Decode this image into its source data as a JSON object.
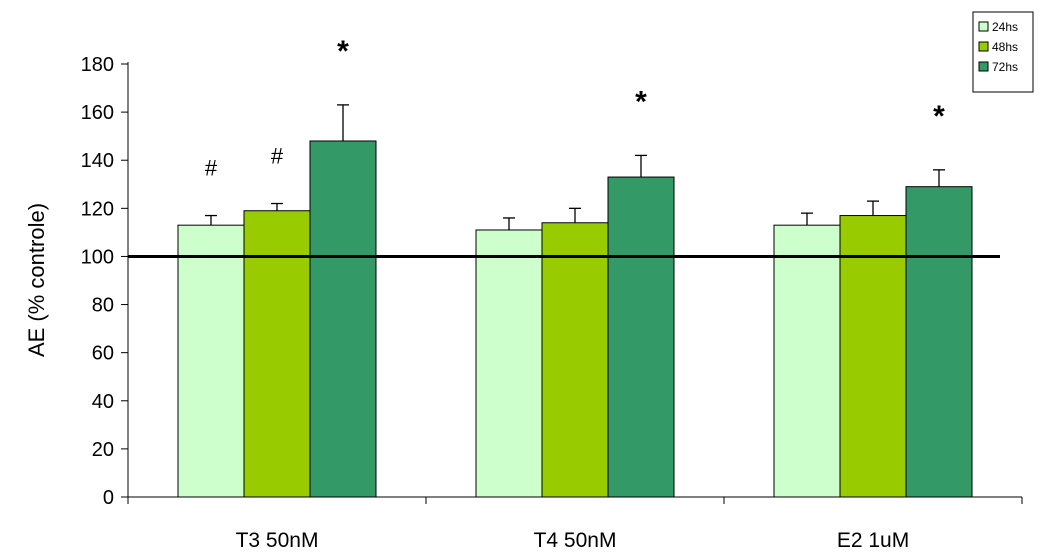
{
  "chart_data": {
    "type": "bar",
    "title": "",
    "xlabel": "",
    "ylabel": "AE (% controle)",
    "categories": [
      "T3 50nM",
      "T4 50nM",
      "E2 1uM"
    ],
    "series": [
      {
        "name": "24hs",
        "color": "#ccffcc",
        "values": [
          113,
          111,
          113
        ],
        "errors": [
          4,
          5,
          5
        ]
      },
      {
        "name": "48hs",
        "color": "#99cc00",
        "values": [
          119,
          114,
          117
        ],
        "errors": [
          3,
          6,
          6
        ]
      },
      {
        "name": "72hs",
        "color": "#339966",
        "values": [
          148,
          133,
          129
        ],
        "errors": [
          15,
          9,
          7
        ]
      }
    ],
    "ylim": [
      0,
      180
    ],
    "yticks": [
      0,
      20,
      40,
      60,
      80,
      100,
      120,
      140,
      160,
      180
    ],
    "reference_line": 100,
    "grid": false,
    "legend_position": "top-right",
    "annotations": [
      {
        "category": 0,
        "series": 0,
        "text": "#"
      },
      {
        "category": 0,
        "series": 1,
        "text": "#"
      },
      {
        "category": 0,
        "series": 2,
        "text": "*"
      },
      {
        "category": 1,
        "series": 2,
        "text": "*"
      },
      {
        "category": 2,
        "series": 2,
        "text": "*"
      }
    ]
  }
}
